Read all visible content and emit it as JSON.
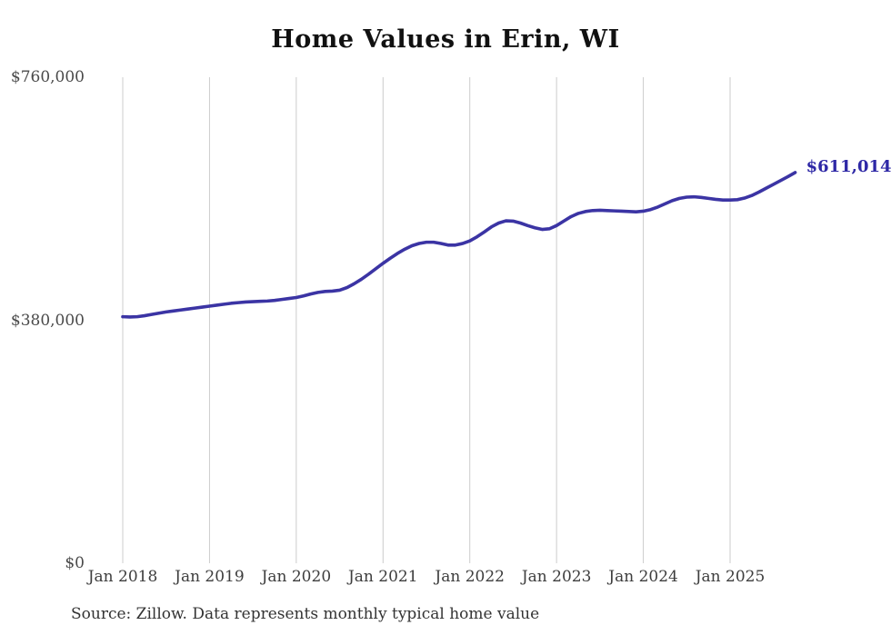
{
  "chart_data": {
    "type": "line",
    "title": "Home Values in Erin, WI",
    "source_note": "Source: Zillow. Data represents monthly typical home value",
    "end_label": "$611,014",
    "end_value": 611014,
    "xlabel": "",
    "ylabel": "",
    "ylim": [
      0,
      760000
    ],
    "grid": "vertical-only",
    "legend": "none",
    "line_color": "#3b34a4",
    "end_label_color": "#2e28a6",
    "grid_color": "#cccccc",
    "axis_text_color": "#4a4a4a",
    "title_color": "#111111",
    "source_color": "#333333",
    "y_ticks": [
      {
        "value": 760000,
        "label": "$760,000"
      },
      {
        "value": 380000,
        "label": "$380,000"
      },
      {
        "value": 0,
        "label": "$0"
      }
    ],
    "x_tick_labels": [
      "Jan 2018",
      "Jan 2019",
      "Jan 2020",
      "Jan 2021",
      "Jan 2022",
      "Jan 2023",
      "Jan 2024",
      "Jan 2025"
    ],
    "series": [
      {
        "name": "Monthly typical home value",
        "start_month": "2018-01",
        "end_month": "2025-10",
        "values": [
          385500,
          385000,
          385500,
          387000,
          389000,
          391000,
          393000,
          394500,
          396000,
          397500,
          399000,
          400500,
          402000,
          403500,
          405000,
          406500,
          407500,
          408500,
          409000,
          409500,
          410000,
          411000,
          412500,
          414000,
          415500,
          418000,
          421000,
          423500,
          425000,
          425500,
          427000,
          431000,
          437000,
          444000,
          452000,
          460500,
          469000,
          477000,
          484500,
          491000,
          496500,
          500000,
          502000,
          502000,
          500000,
          497500,
          497500,
          500000,
          504000,
          510500,
          518000,
          526000,
          532000,
          535500,
          535000,
          532000,
          528000,
          524500,
          522000,
          523000,
          528000,
          535000,
          542000,
          547000,
          550000,
          551500,
          552000,
          551500,
          551000,
          550500,
          550000,
          549500,
          550500,
          553000,
          557000,
          562000,
          567000,
          570500,
          572500,
          573000,
          572000,
          570500,
          569000,
          568000,
          568000,
          568500,
          571000,
          575000,
          580500,
          586500,
          592500,
          598500,
          604500,
          611014
        ]
      }
    ]
  }
}
